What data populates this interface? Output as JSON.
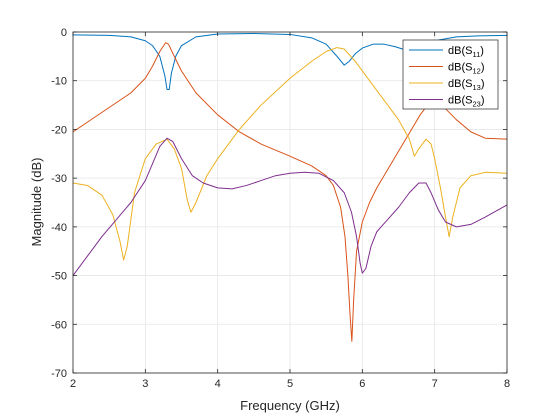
{
  "chart_data": {
    "type": "line",
    "title": "",
    "xlabel": "Frequency (GHz)",
    "ylabel": "Magnitude (dB)",
    "xlim": [
      2,
      8
    ],
    "ylim": [
      -70,
      0
    ],
    "xticks": [
      2,
      3,
      4,
      5,
      6,
      7,
      8
    ],
    "yticks": [
      0,
      -10,
      -20,
      -30,
      -40,
      -50,
      -60,
      -70
    ],
    "grid": true,
    "legend_position": "top-right",
    "series": [
      {
        "name": "dB(S11)",
        "label_main": "dB(S",
        "label_sub": "11",
        "label_tail": ")",
        "color": "#0072BD",
        "points": [
          [
            2.0,
            -0.6
          ],
          [
            2.5,
            -0.7
          ],
          [
            2.8,
            -1.0
          ],
          [
            3.0,
            -1.8
          ],
          [
            3.1,
            -2.8
          ],
          [
            3.2,
            -5.0
          ],
          [
            3.27,
            -9.0
          ],
          [
            3.3,
            -11.8
          ],
          [
            3.33,
            -11.8
          ],
          [
            3.36,
            -8.5
          ],
          [
            3.42,
            -5.0
          ],
          [
            3.5,
            -2.8
          ],
          [
            3.7,
            -1.0
          ],
          [
            4.0,
            -0.4
          ],
          [
            4.5,
            -0.3
          ],
          [
            5.0,
            -0.5
          ],
          [
            5.3,
            -1.2
          ],
          [
            5.5,
            -2.5
          ],
          [
            5.65,
            -5.0
          ],
          [
            5.75,
            -6.8
          ],
          [
            5.82,
            -6.0
          ],
          [
            5.9,
            -4.5
          ],
          [
            6.0,
            -3.3
          ],
          [
            6.15,
            -2.5
          ],
          [
            6.3,
            -2.5
          ],
          [
            6.45,
            -3.0
          ],
          [
            6.6,
            -3.7
          ],
          [
            6.7,
            -3.8
          ],
          [
            6.8,
            -3.3
          ],
          [
            6.9,
            -2.5
          ],
          [
            7.0,
            -1.8
          ],
          [
            7.3,
            -1.0
          ],
          [
            7.6,
            -0.8
          ],
          [
            8.0,
            -0.7
          ]
        ]
      },
      {
        "name": "dB(S12)",
        "label_main": "dB(S",
        "label_sub": "12",
        "label_tail": ")",
        "color": "#D95319",
        "points": [
          [
            2.0,
            -20.5
          ],
          [
            2.2,
            -18.5
          ],
          [
            2.5,
            -15.5
          ],
          [
            2.8,
            -12.5
          ],
          [
            3.0,
            -9.5
          ],
          [
            3.1,
            -7.0
          ],
          [
            3.2,
            -4.0
          ],
          [
            3.28,
            -2.2
          ],
          [
            3.32,
            -2.5
          ],
          [
            3.4,
            -5.0
          ],
          [
            3.5,
            -8.0
          ],
          [
            3.7,
            -12.5
          ],
          [
            4.0,
            -17.0
          ],
          [
            4.3,
            -20.5
          ],
          [
            4.6,
            -23.0
          ],
          [
            5.0,
            -25.5
          ],
          [
            5.3,
            -27.5
          ],
          [
            5.5,
            -29.5
          ],
          [
            5.6,
            -31.5
          ],
          [
            5.7,
            -36.0
          ],
          [
            5.76,
            -42.0
          ],
          [
            5.8,
            -50.0
          ],
          [
            5.83,
            -58.0
          ],
          [
            5.855,
            -63.5
          ],
          [
            5.88,
            -55.0
          ],
          [
            5.92,
            -45.0
          ],
          [
            6.0,
            -39.0
          ],
          [
            6.1,
            -35.0
          ],
          [
            6.2,
            -32.0
          ],
          [
            6.4,
            -27.0
          ],
          [
            6.6,
            -22.0
          ],
          [
            6.8,
            -17.0
          ],
          [
            6.9,
            -15.0
          ],
          [
            7.0,
            -14.0
          ],
          [
            7.1,
            -15.0
          ],
          [
            7.3,
            -18.0
          ],
          [
            7.5,
            -20.5
          ],
          [
            7.7,
            -21.8
          ],
          [
            8.0,
            -22.0
          ]
        ]
      },
      {
        "name": "dB(S13)",
        "label_main": "dB(S",
        "label_sub": "13",
        "label_tail": ")",
        "color": "#EDB120",
        "points": [
          [
            2.0,
            -31.0
          ],
          [
            2.2,
            -31.5
          ],
          [
            2.4,
            -33.5
          ],
          [
            2.55,
            -37.5
          ],
          [
            2.65,
            -43.0
          ],
          [
            2.7,
            -46.8
          ],
          [
            2.75,
            -44.0
          ],
          [
            2.85,
            -33.0
          ],
          [
            3.0,
            -26.0
          ],
          [
            3.15,
            -23.0
          ],
          [
            3.3,
            -22.0
          ],
          [
            3.4,
            -24.0
          ],
          [
            3.5,
            -28.0
          ],
          [
            3.58,
            -34.5
          ],
          [
            3.63,
            -37.0
          ],
          [
            3.7,
            -35.0
          ],
          [
            3.85,
            -29.5
          ],
          [
            4.0,
            -26.0
          ],
          [
            4.3,
            -20.0
          ],
          [
            4.6,
            -15.0
          ],
          [
            5.0,
            -9.5
          ],
          [
            5.3,
            -6.0
          ],
          [
            5.5,
            -4.0
          ],
          [
            5.65,
            -3.2
          ],
          [
            5.75,
            -3.5
          ],
          [
            5.9,
            -6.0
          ],
          [
            6.1,
            -10.0
          ],
          [
            6.3,
            -14.0
          ],
          [
            6.5,
            -18.0
          ],
          [
            6.65,
            -22.0
          ],
          [
            6.72,
            -25.5
          ],
          [
            6.78,
            -24.0
          ],
          [
            6.88,
            -22.0
          ],
          [
            6.95,
            -23.0
          ],
          [
            7.0,
            -26.0
          ],
          [
            7.08,
            -32.0
          ],
          [
            7.15,
            -38.0
          ],
          [
            7.2,
            -42.0
          ],
          [
            7.25,
            -38.0
          ],
          [
            7.35,
            -32.0
          ],
          [
            7.5,
            -29.5
          ],
          [
            7.7,
            -28.8
          ],
          [
            8.0,
            -29.0
          ]
        ]
      },
      {
        "name": "dB(S23)",
        "label_main": "dB(S",
        "label_sub": "23",
        "label_tail": ")",
        "color": "#7E2F8E",
        "points": [
          [
            2.0,
            -50.0
          ],
          [
            2.2,
            -46.0
          ],
          [
            2.4,
            -42.0
          ],
          [
            2.6,
            -38.5
          ],
          [
            2.8,
            -35.0
          ],
          [
            3.0,
            -30.5
          ],
          [
            3.1,
            -27.0
          ],
          [
            3.2,
            -23.5
          ],
          [
            3.3,
            -21.8
          ],
          [
            3.38,
            -22.5
          ],
          [
            3.5,
            -26.0
          ],
          [
            3.65,
            -29.5
          ],
          [
            3.8,
            -31.0
          ],
          [
            4.0,
            -32.0
          ],
          [
            4.2,
            -32.2
          ],
          [
            4.4,
            -31.5
          ],
          [
            4.6,
            -30.5
          ],
          [
            4.8,
            -29.5
          ],
          [
            5.0,
            -29.0
          ],
          [
            5.2,
            -28.8
          ],
          [
            5.4,
            -29.0
          ],
          [
            5.6,
            -30.5
          ],
          [
            5.75,
            -33.0
          ],
          [
            5.85,
            -37.0
          ],
          [
            5.92,
            -42.0
          ],
          [
            5.97,
            -47.5
          ],
          [
            6.0,
            -49.5
          ],
          [
            6.05,
            -48.5
          ],
          [
            6.12,
            -44.0
          ],
          [
            6.2,
            -41.0
          ],
          [
            6.35,
            -38.5
          ],
          [
            6.5,
            -36.0
          ],
          [
            6.65,
            -33.0
          ],
          [
            6.78,
            -31.0
          ],
          [
            6.88,
            -31.0
          ],
          [
            6.95,
            -33.0
          ],
          [
            7.05,
            -36.5
          ],
          [
            7.15,
            -39.0
          ],
          [
            7.3,
            -40.0
          ],
          [
            7.5,
            -39.5
          ],
          [
            7.7,
            -38.0
          ],
          [
            8.0,
            -35.5
          ]
        ]
      }
    ]
  }
}
